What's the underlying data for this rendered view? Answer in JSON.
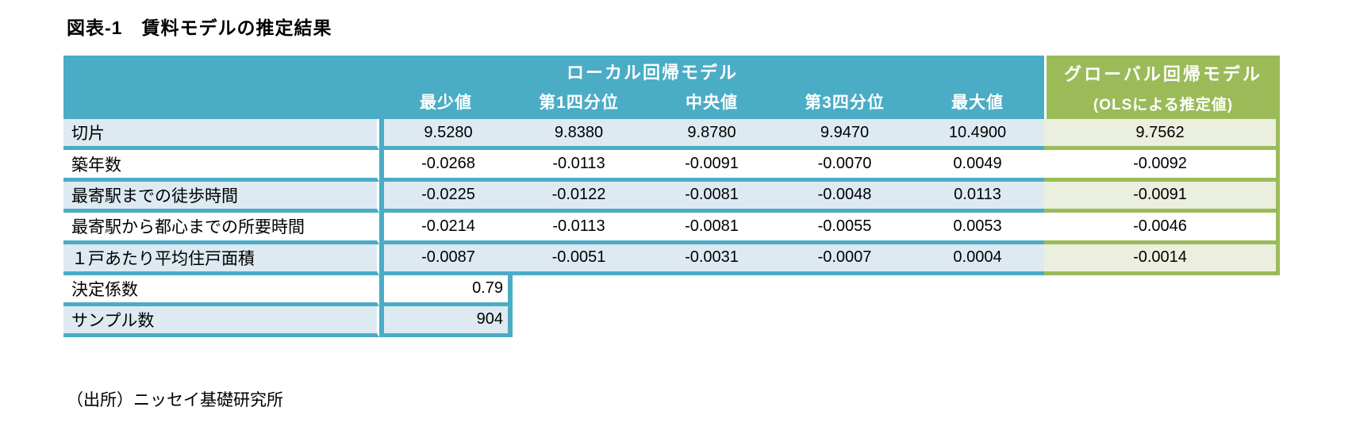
{
  "title": "図表-1　賃料モデルの推定結果",
  "colors": {
    "teal_header": "#4BACC6",
    "green_header": "#9BBB59",
    "light_blue_row": "#DEEAF1",
    "light_green_cell": "#EBF0DE",
    "header_text": "#ffffff"
  },
  "table": {
    "group_headers": {
      "local": "ローカル回帰モデル",
      "global_line1": "グローバル回帰モデル",
      "global_line2": "(OLSによる推定値)"
    },
    "column_headers": [
      "最少値",
      "第1四分位",
      "中央値",
      "第3四分位",
      "最大値"
    ],
    "rows": [
      {
        "label": "切片",
        "values": [
          "9.5280",
          "9.8380",
          "9.8780",
          "9.9470",
          "10.4900"
        ],
        "global": "9.7562"
      },
      {
        "label": "築年数",
        "values": [
          "-0.0268",
          "-0.0113",
          "-0.0091",
          "-0.0070",
          "0.0049"
        ],
        "global": "-0.0092"
      },
      {
        "label": "最寄駅までの徒歩時間",
        "values": [
          "-0.0225",
          "-0.0122",
          "-0.0081",
          "-0.0048",
          "0.0113"
        ],
        "global": "-0.0091"
      },
      {
        "label": "最寄駅から都心までの所要時間",
        "values": [
          "-0.0214",
          "-0.0113",
          "-0.0081",
          "-0.0055",
          "0.0053"
        ],
        "global": "-0.0046"
      },
      {
        "label": "１戸あたり平均住戸面積",
        "values": [
          "-0.0087",
          "-0.0051",
          "-0.0031",
          "-0.0007",
          "0.0004"
        ],
        "global": "-0.0014"
      }
    ],
    "summary_rows": [
      {
        "label": "決定係数",
        "value": "0.79"
      },
      {
        "label": "サンプル数",
        "value": "904"
      }
    ]
  },
  "source": "（出所）ニッセイ基礎研究所"
}
